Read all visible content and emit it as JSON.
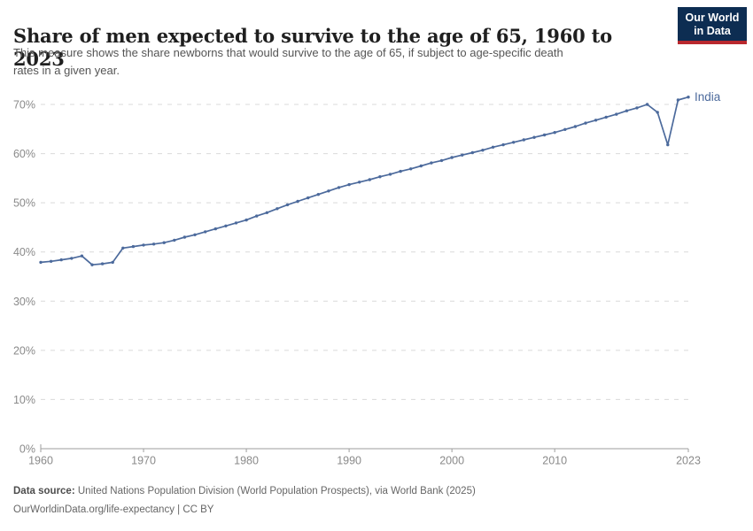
{
  "chart_data": {
    "type": "line",
    "title": "Share of men expected to survive to the age of 65, 1960 to 2023",
    "subtitle": "This measure shows the share newborns that would survive to the age of 65, if subject to age-specific death rates in a given year.",
    "subtitle_lines": [
      "This measure shows the share newborns that would survive to the age of 65, if subject to age-specific death",
      "rates in a given year."
    ],
    "xlabel": "",
    "ylabel": "",
    "xlim": [
      1960,
      2023
    ],
    "ylim": [
      0,
      70
    ],
    "grid": "horizontal-dashed",
    "legend_position": "end-of-line-label",
    "x_ticks": [
      {
        "value": 1960,
        "label": "1960"
      },
      {
        "value": 1970,
        "label": "1970"
      },
      {
        "value": 1980,
        "label": "1980"
      },
      {
        "value": 1990,
        "label": "1990"
      },
      {
        "value": 2000,
        "label": "2000"
      },
      {
        "value": 2010,
        "label": "2010"
      },
      {
        "value": 2023,
        "label": "2023"
      }
    ],
    "y_ticks": [
      {
        "value": 0,
        "label": "0%"
      },
      {
        "value": 10,
        "label": "10%"
      },
      {
        "value": 20,
        "label": "20%"
      },
      {
        "value": 30,
        "label": "30%"
      },
      {
        "value": 40,
        "label": "40%"
      },
      {
        "value": 50,
        "label": "50%"
      },
      {
        "value": 60,
        "label": "60%"
      },
      {
        "value": 70,
        "label": "70%"
      }
    ],
    "series": [
      {
        "name": "India",
        "color": "#4C6A9C",
        "x": [
          1960,
          1961,
          1962,
          1963,
          1964,
          1965,
          1966,
          1967,
          1968,
          1969,
          1970,
          1971,
          1972,
          1973,
          1974,
          1975,
          1976,
          1977,
          1978,
          1979,
          1980,
          1981,
          1982,
          1983,
          1984,
          1985,
          1986,
          1987,
          1988,
          1989,
          1990,
          1991,
          1992,
          1993,
          1994,
          1995,
          1996,
          1997,
          1998,
          1999,
          2000,
          2001,
          2002,
          2003,
          2004,
          2005,
          2006,
          2007,
          2008,
          2009,
          2010,
          2011,
          2012,
          2013,
          2014,
          2015,
          2016,
          2017,
          2018,
          2019,
          2020,
          2021,
          2022,
          2023
        ],
        "values": [
          37.9,
          38.1,
          38.4,
          38.7,
          39.2,
          37.4,
          37.6,
          37.9,
          40.8,
          41.1,
          41.4,
          41.6,
          41.9,
          42.4,
          43.0,
          43.5,
          44.1,
          44.7,
          45.3,
          45.9,
          46.5,
          47.3,
          48.0,
          48.8,
          49.6,
          50.3,
          51.0,
          51.7,
          52.4,
          53.1,
          53.7,
          54.2,
          54.7,
          55.3,
          55.8,
          56.4,
          56.9,
          57.5,
          58.1,
          58.6,
          59.2,
          59.7,
          60.2,
          60.7,
          61.3,
          61.8,
          62.3,
          62.8,
          63.3,
          63.8,
          64.3,
          64.9,
          65.5,
          66.2,
          66.8,
          67.4,
          68.0,
          68.7,
          69.3,
          70.0,
          68.4,
          61.8,
          70.9,
          71.5
        ]
      }
    ]
  },
  "logo": {
    "line1": "Our World",
    "line2": "in Data",
    "navy": "#0d2d52",
    "red": "#b9282e"
  },
  "footer": {
    "source_label": "Data source:",
    "source_text": " United Nations Population Division (World Population Prospects), via World Bank (2025)",
    "license_line": "OurWorldinData.org/life-expectancy | CC BY"
  }
}
